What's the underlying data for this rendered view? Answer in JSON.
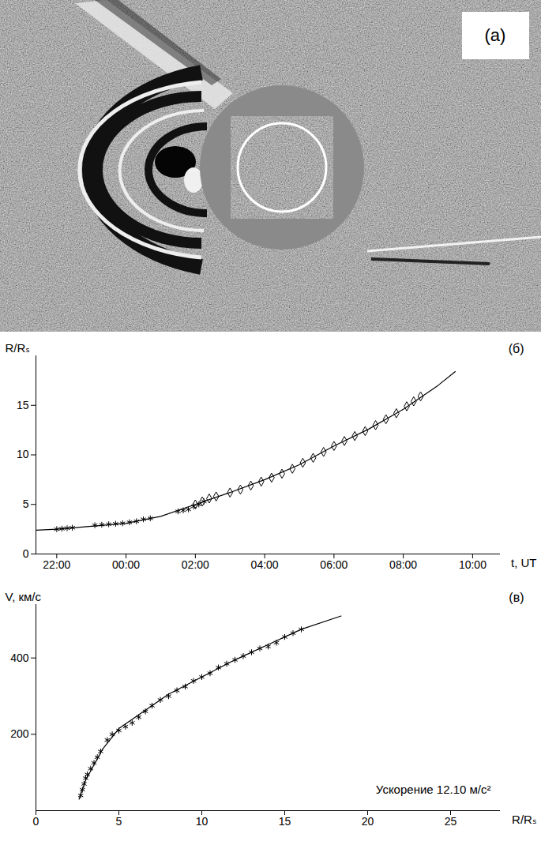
{
  "chart_data": [
    {
      "type": "image",
      "title": "(а)"
    },
    {
      "type": "scatter",
      "title": "(б)",
      "x_label": "t, UT",
      "y_label": "R/Rₛ",
      "xlim": [
        21.4,
        34.8
      ],
      "ylim": [
        0,
        20
      ],
      "xticks": [
        {
          "value": 22,
          "label": "22:00"
        },
        {
          "value": 24,
          "label": "00:00"
        },
        {
          "value": 26,
          "label": "02:00"
        },
        {
          "value": 28,
          "label": "04:00"
        },
        {
          "value": 30,
          "label": "06:00"
        },
        {
          "value": 32,
          "label": "08:00"
        },
        {
          "value": 34,
          "label": "10:00"
        }
      ],
      "yticks": [
        0,
        5,
        10,
        15
      ],
      "series": [
        {
          "type": "scatter",
          "marker": "asterisk",
          "color": "#000000",
          "x": [
            22.0,
            22.15,
            22.3,
            22.45,
            23.1,
            23.3,
            23.5,
            23.7,
            23.9,
            24.1,
            24.3,
            24.5,
            24.7,
            25.5,
            25.65,
            25.8,
            25.95,
            26.1,
            26.25
          ],
          "values": [
            2.5,
            2.55,
            2.6,
            2.65,
            2.9,
            2.95,
            3.0,
            3.05,
            3.1,
            3.2,
            3.3,
            3.5,
            3.6,
            4.3,
            4.4,
            4.5,
            4.8,
            5.0,
            5.3
          ]
        },
        {
          "type": "scatter",
          "marker": "diamond",
          "color": "#000000",
          "x": [
            26.0,
            26.2,
            26.4,
            26.6,
            27.0,
            27.3,
            27.6,
            27.9,
            28.2,
            28.5,
            28.8,
            29.1,
            29.4,
            29.7,
            30.0,
            30.3,
            30.6,
            30.9,
            31.2,
            31.5,
            31.8,
            32.1,
            32.3,
            32.5
          ],
          "values": [
            5.0,
            5.3,
            5.6,
            5.8,
            6.2,
            6.5,
            6.9,
            7.3,
            7.7,
            8.1,
            8.6,
            9.2,
            9.7,
            10.3,
            10.9,
            11.4,
            11.9,
            12.4,
            13.0,
            13.6,
            14.2,
            14.9,
            15.4,
            15.9
          ]
        },
        {
          "type": "line",
          "line_style": "solid",
          "color": "#000000",
          "x": [
            21.4,
            22,
            23,
            24,
            25,
            26,
            27,
            28,
            29,
            30,
            31,
            32,
            33,
            33.5
          ],
          "values": [
            2.4,
            2.5,
            2.8,
            3.1,
            3.8,
            5.0,
            6.2,
            7.5,
            9.0,
            10.9,
            12.6,
            14.6,
            17.0,
            18.4
          ]
        }
      ]
    },
    {
      "type": "scatter",
      "title": "(в)",
      "x_label": "R/Rₛ",
      "y_label": "V, км/с",
      "annotation": "Ускорение 12.10 м/с²",
      "xlim": [
        0,
        28
      ],
      "ylim": [
        0,
        540
      ],
      "xticks": [
        0,
        5,
        10,
        15,
        20,
        25
      ],
      "yticks": [
        200,
        400
      ],
      "series": [
        {
          "type": "scatter",
          "marker": "asterisk",
          "color": "#000000",
          "x": [
            2.7,
            2.8,
            2.9,
            3.0,
            3.1,
            3.3,
            3.5,
            3.7,
            3.9,
            4.3,
            4.6,
            5.0,
            5.4,
            5.8,
            6.2,
            6.6,
            7.0,
            7.5,
            8.0,
            8.5,
            9.0,
            9.5,
            10.0,
            10.5,
            11.0,
            11.5,
            12.0,
            12.5,
            13.0,
            13.5,
            14.0,
            14.5,
            15.0,
            15.5,
            16.0
          ],
          "values": [
            40,
            55,
            70,
            85,
            95,
            110,
            125,
            140,
            155,
            185,
            200,
            210,
            220,
            230,
            245,
            260,
            275,
            290,
            300,
            315,
            325,
            340,
            350,
            360,
            375,
            385,
            395,
            405,
            415,
            425,
            430,
            440,
            455,
            465,
            475
          ]
        },
        {
          "type": "line",
          "line_style": "solid",
          "color": "#000000",
          "x": [
            2.6,
            3,
            4,
            5,
            6,
            8,
            10,
            12,
            14,
            16,
            18.4
          ],
          "values": [
            30,
            80,
            160,
            215,
            245,
            305,
            350,
            395,
            435,
            475,
            510
          ]
        }
      ]
    }
  ]
}
